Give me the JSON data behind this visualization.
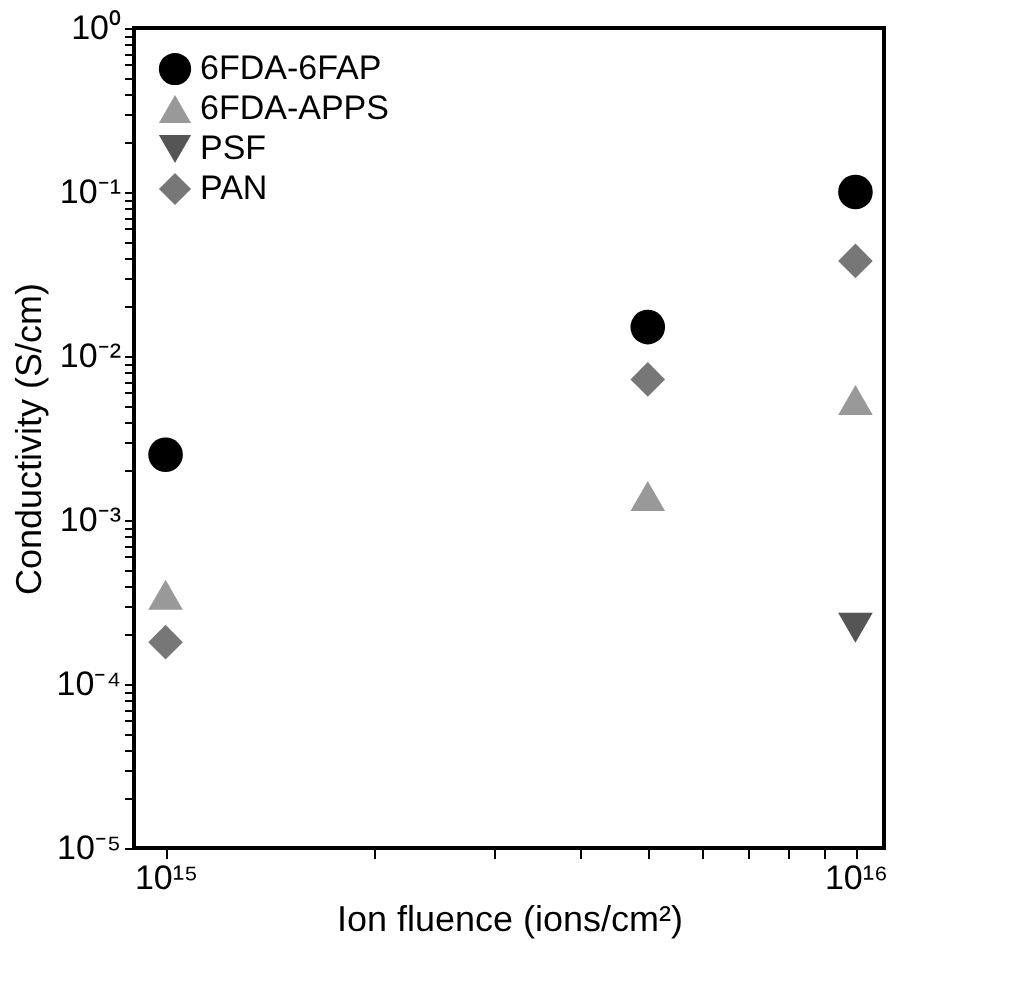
{
  "chart_data": {
    "type": "scatter",
    "xlabel": "Ion fluence (ions/cm²)",
    "ylabel": "Conductivity (S/cm)",
    "log": "xy",
    "grid": false,
    "legend": "top left",
    "xlim": [
      900000000000000.0,
      1.1e+16
    ],
    "ylim": [
      1e-05,
      1
    ],
    "xticks": [
      {
        "value": 1000000000000000.0,
        "label": "10¹⁵"
      },
      {
        "value": 2000000000000000.0,
        "label": null
      },
      {
        "value": 3000000000000000.0,
        "label": null
      },
      {
        "value": 4000000000000000.0,
        "label": null
      },
      {
        "value": 5000000000000000.0,
        "label": null
      },
      {
        "value": 6000000000000000.0,
        "label": null
      },
      {
        "value": 7000000000000000.0,
        "label": null
      },
      {
        "value": 8000000000000000.0,
        "label": null
      },
      {
        "value": 9000000000000000.0,
        "label": null
      },
      {
        "value": 1e+16,
        "label": "10¹⁶"
      }
    ],
    "yticks": [
      {
        "value": 1e-05,
        "label": "10⁻⁵"
      },
      {
        "value": 2e-05,
        "label": null
      },
      {
        "value": 3e-05,
        "label": null
      },
      {
        "value": 4e-05,
        "label": null
      },
      {
        "value": 5e-05,
        "label": null
      },
      {
        "value": 6e-05,
        "label": null
      },
      {
        "value": 7e-05,
        "label": null
      },
      {
        "value": 8e-05,
        "label": null
      },
      {
        "value": 9e-05,
        "label": null
      },
      {
        "value": 0.0001,
        "label": "10⁻⁴"
      },
      {
        "value": 0.0002,
        "label": null
      },
      {
        "value": 0.0003,
        "label": null
      },
      {
        "value": 0.0004,
        "label": null
      },
      {
        "value": 0.0005,
        "label": null
      },
      {
        "value": 0.0006,
        "label": null
      },
      {
        "value": 0.0007,
        "label": null
      },
      {
        "value": 0.0008,
        "label": null
      },
      {
        "value": 0.0009,
        "label": null
      },
      {
        "value": 0.001,
        "label": "10⁻³"
      },
      {
        "value": 0.002,
        "label": null
      },
      {
        "value": 0.003,
        "label": null
      },
      {
        "value": 0.004,
        "label": null
      },
      {
        "value": 0.005,
        "label": null
      },
      {
        "value": 0.006,
        "label": null
      },
      {
        "value": 0.007,
        "label": null
      },
      {
        "value": 0.008,
        "label": null
      },
      {
        "value": 0.009,
        "label": null
      },
      {
        "value": 0.01,
        "label": "10⁻²"
      },
      {
        "value": 0.02,
        "label": null
      },
      {
        "value": 0.03,
        "label": null
      },
      {
        "value": 0.04,
        "label": null
      },
      {
        "value": 0.05,
        "label": null
      },
      {
        "value": 0.06,
        "label": null
      },
      {
        "value": 0.07,
        "label": null
      },
      {
        "value": 0.08,
        "label": null
      },
      {
        "value": 0.09,
        "label": null
      },
      {
        "value": 0.1,
        "label": "10⁻¹"
      },
      {
        "value": 0.2,
        "label": null
      },
      {
        "value": 0.3,
        "label": null
      },
      {
        "value": 0.4,
        "label": null
      },
      {
        "value": 0.5,
        "label": null
      },
      {
        "value": 0.6,
        "label": null
      },
      {
        "value": 0.7,
        "label": null
      },
      {
        "value": 0.8,
        "label": null
      },
      {
        "value": 0.9,
        "label": null
      },
      {
        "value": 1,
        "label": "10⁰"
      }
    ],
    "series": [
      {
        "name": "6FDA-6FAP",
        "color": "#000000",
        "marker": "circle",
        "x": [
          1000000000000000.0,
          5000000000000000.0,
          1e+16
        ],
        "values": [
          0.0025,
          0.015,
          0.1
        ]
      },
      {
        "name": "6FDA-APPS",
        "color": "#999999",
        "marker": "triangle",
        "x": [
          1000000000000000.0,
          5000000000000000.0,
          1e+16
        ],
        "values": [
          0.00035,
          0.0014,
          0.0054
        ]
      },
      {
        "name": "PSF",
        "color": "#555555",
        "marker": "triangle-down",
        "x": [
          1e+16
        ],
        "values": [
          0.00022
        ]
      },
      {
        "name": "PAN",
        "color": "#777777",
        "marker": "diamond",
        "x": [
          1000000000000000.0,
          5000000000000000.0,
          1e+16
        ],
        "values": [
          0.00018,
          0.0072,
          0.038
        ]
      }
    ]
  }
}
